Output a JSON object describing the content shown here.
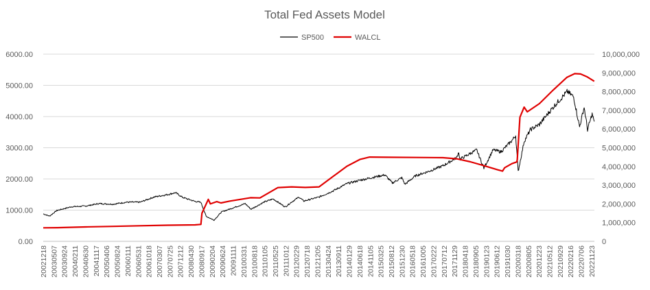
{
  "chart_data": {
    "type": "line",
    "title": "Total Fed Assets Model",
    "xlabel": "",
    "ylabel_left": "",
    "ylabel_right": "",
    "legend_position": "top",
    "grid": true,
    "y_left": {
      "min": 0,
      "max": 6000,
      "ticks": [
        0,
        1000,
        2000,
        3000,
        4000,
        5000,
        6000
      ],
      "tick_labels": [
        "0.00",
        "1000.00",
        "2000.00",
        "3000.00",
        "4000.00",
        "5000.00",
        "6000.00"
      ]
    },
    "y_right": {
      "min": 0,
      "max": 10000000,
      "ticks": [
        0,
        1000000,
        2000000,
        3000000,
        4000000,
        5000000,
        6000000,
        7000000,
        8000000,
        9000000,
        10000000
      ],
      "tick_labels": [
        "0",
        "1,000,000",
        "2,000,000",
        "3,000,000",
        "4,000,000",
        "5,000,000",
        "6,000,000",
        "7,000,000",
        "8,000,000",
        "9,000,000",
        "10,000,000"
      ]
    },
    "x_tick_labels": [
      "20021218",
      "20030507",
      "20030924",
      "20040211",
      "20040630",
      "20041117",
      "20050406",
      "20050824",
      "20060111",
      "20060531",
      "20061018",
      "20070307",
      "20070725",
      "20071212",
      "20080430",
      "20080917",
      "20090204",
      "20090624",
      "20091111",
      "20100331",
      "20100818",
      "20110105",
      "20110525",
      "20111012",
      "20120229",
      "20120718",
      "20121205",
      "20130424",
      "20130911",
      "20140129",
      "20140618",
      "20141105",
      "20150325",
      "20150812",
      "20151230",
      "20160518",
      "20161005",
      "20170222",
      "20170712",
      "20171129",
      "20180418",
      "20180905",
      "20190123",
      "20190612",
      "20191030",
      "20200318",
      "20200805",
      "20201223",
      "20210512",
      "20210929",
      "20220216",
      "20220706",
      "20221123"
    ],
    "series": [
      {
        "name": "SP500",
        "axis": "left",
        "color": "#000000",
        "x": [
          "2002-12-18",
          "2003-03-12",
          "2003-06-18",
          "2003-12-31",
          "2004-06-30",
          "2004-12-29",
          "2005-06-29",
          "2005-12-28",
          "2006-06-28",
          "2006-12-27",
          "2007-06-27",
          "2007-10-10",
          "2008-01-09",
          "2008-06-25",
          "2008-09-10",
          "2008-11-19",
          "2009-03-04",
          "2009-06-10",
          "2009-12-30",
          "2010-04-21",
          "2010-07-07",
          "2010-12-29",
          "2011-04-27",
          "2011-10-05",
          "2011-12-28",
          "2012-04-04",
          "2012-06-06",
          "2012-12-26",
          "2013-06-26",
          "2013-12-31",
          "2014-06-25",
          "2014-12-31",
          "2015-05-20",
          "2015-08-26",
          "2015-12-30",
          "2016-02-10",
          "2016-06-29",
          "2016-12-28",
          "2017-06-28",
          "2017-12-27",
          "2018-01-24",
          "2018-02-07",
          "2018-09-19",
          "2018-12-24",
          "2019-04-24",
          "2019-08-07",
          "2019-12-31",
          "2020-02-19",
          "2020-03-23",
          "2020-06-10",
          "2020-09-02",
          "2020-12-30",
          "2021-06-30",
          "2021-12-29",
          "2022-01-05",
          "2022-03-29",
          "2022-06-16",
          "2022-08-16",
          "2022-09-30",
          "2022-11-30",
          "2022-12-28"
        ],
        "values": [
          880,
          810,
          990,
          1110,
          1130,
          1210,
          1190,
          1255,
          1255,
          1420,
          1500,
          1560,
          1410,
          1280,
          1250,
          800,
          680,
          940,
          1115,
          1210,
          1030,
          1260,
          1360,
          1100,
          1260,
          1420,
          1290,
          1420,
          1610,
          1850,
          1960,
          2060,
          2130,
          1870,
          2040,
          1830,
          2100,
          2250,
          2420,
          2680,
          2870,
          2630,
          2930,
          2350,
          2930,
          2870,
          3230,
          3390,
          2240,
          3200,
          3580,
          3750,
          4300,
          4790,
          4800,
          4630,
          3670,
          4300,
          3580,
          4080,
          3840
        ]
      },
      {
        "name": "WALCL",
        "axis": "right",
        "color": "#e00000",
        "x": [
          "2002-12-18",
          "2003-06-25",
          "2004-06-30",
          "2005-06-29",
          "2006-06-28",
          "2007-06-27",
          "2008-06-25",
          "2008-09-10",
          "2008-09-24",
          "2008-12-17",
          "2009-01-14",
          "2009-04-08",
          "2009-06-03",
          "2009-09-30",
          "2010-06-30",
          "2010-11-03",
          "2011-06-29",
          "2011-12-28",
          "2012-06-27",
          "2012-12-26",
          "2013-06-26",
          "2013-12-31",
          "2014-06-25",
          "2014-10-29",
          "2015-06-24",
          "2016-06-29",
          "2017-06-28",
          "2017-12-27",
          "2018-06-27",
          "2018-12-26",
          "2019-06-26",
          "2019-08-28",
          "2019-09-25",
          "2019-12-31",
          "2020-03-04",
          "2020-03-11",
          "2020-04-15",
          "2020-06-10",
          "2020-07-22",
          "2020-12-30",
          "2021-06-30",
          "2021-12-29",
          "2022-04-13",
          "2022-06-29",
          "2022-09-28",
          "2022-12-28"
        ],
        "values": [
          720000,
          730000,
          770000,
          800000,
          830000,
          860000,
          880000,
          905000,
          1500000,
          2240000,
          2000000,
          2120000,
          2050000,
          2150000,
          2330000,
          2320000,
          2870000,
          2910000,
          2880000,
          2910000,
          3450000,
          4010000,
          4380000,
          4500000,
          4490000,
          4480000,
          4470000,
          4410000,
          4250000,
          4040000,
          3820000,
          3750000,
          3930000,
          4150000,
          4240000,
          4360000,
          6630000,
          7170000,
          6920000,
          7360000,
          8080000,
          8760000,
          8960000,
          8940000,
          8780000,
          8550000
        ]
      }
    ]
  }
}
